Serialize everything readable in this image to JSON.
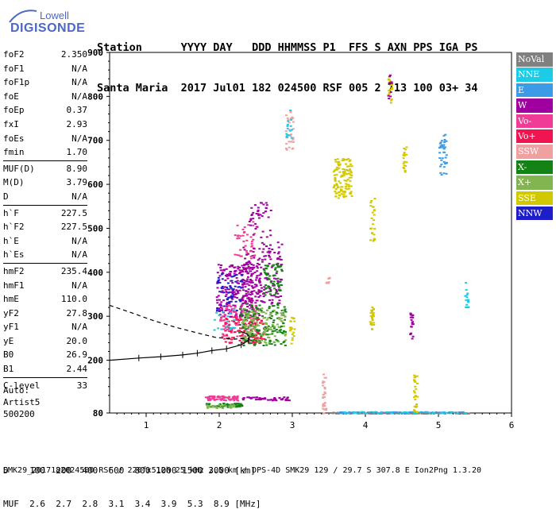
{
  "logo": {
    "top": "Lowell",
    "bottom": "DIGISONDE"
  },
  "header": {
    "row1": "Station      YYYY DAY   DDD HHMMSS P1  FFS S AXN PPS IGA PS",
    "row2": "Santa Maria  2017 Jul01 182 024500 RSF 005 2 713 100 03+ 34"
  },
  "params": [
    {
      "name": "foF2",
      "value": "2.350"
    },
    {
      "name": "foF1",
      "value": "N/A"
    },
    {
      "name": "foF1p",
      "value": "N/A"
    },
    {
      "name": "foE",
      "value": "N/A"
    },
    {
      "name": "foEp",
      "value": "0.37"
    },
    {
      "name": "fxI",
      "value": "2.93"
    },
    {
      "name": "foEs",
      "value": "N/A"
    },
    {
      "name": "fmin",
      "value": "1.70"
    },
    {
      "sep": true
    },
    {
      "name": "MUF(D)",
      "value": "8.90"
    },
    {
      "name": "M(D)",
      "value": "3.79"
    },
    {
      "name": "D",
      "value": "N/A"
    },
    {
      "sep": true
    },
    {
      "name": "h`F",
      "value": "227.5"
    },
    {
      "name": "h`F2",
      "value": "227.5"
    },
    {
      "name": "h`E",
      "value": "N/A"
    },
    {
      "name": "h`Es",
      "value": "N/A"
    },
    {
      "sep": true
    },
    {
      "name": "hmF2",
      "value": "235.4"
    },
    {
      "name": "hmF1",
      "value": "N/A"
    },
    {
      "name": "hmE",
      "value": "110.0"
    },
    {
      "name": "yF2",
      "value": "27.8"
    },
    {
      "name": "yF1",
      "value": "N/A"
    },
    {
      "name": "yE",
      "value": "20.0"
    },
    {
      "name": "B0",
      "value": "26.9"
    },
    {
      "name": "B1",
      "value": "2.44"
    },
    {
      "sep": true
    },
    {
      "name": "C-level",
      "value": "33"
    }
  ],
  "auto": {
    "line1": "Auto:",
    "line2": "Artist5",
    "line3": "500200"
  },
  "legend": [
    {
      "label": "NoVal",
      "color": "#808080"
    },
    {
      "label": "NNE",
      "color": "#1ecbe6"
    },
    {
      "label": "E",
      "color": "#3c9be6"
    },
    {
      "label": "W",
      "color": "#a000a0"
    },
    {
      "label": "Vo-",
      "color": "#f03c96"
    },
    {
      "label": "Vo+",
      "color": "#f01450"
    },
    {
      "label": "SSW",
      "color": "#f0a0a0"
    },
    {
      "label": "X-",
      "color": "#148214"
    },
    {
      "label": "X+",
      "color": "#82b450"
    },
    {
      "label": "SSE",
      "color": "#d2c800"
    },
    {
      "label": "NNW",
      "color": "#1e1ec8"
    }
  ],
  "chart_data": {
    "type": "scatter",
    "xlim": [
      0.5,
      6
    ],
    "ylim": [
      80,
      900
    ],
    "x_ticks": [
      1,
      2,
      3,
      4,
      5,
      6
    ],
    "y_ticks": [
      80,
      200,
      300,
      400,
      500,
      600,
      700,
      800,
      900
    ],
    "profile_points": [
      [
        0.5,
        200
      ],
      [
        0.9,
        205
      ],
      [
        1.2,
        208
      ],
      [
        1.5,
        212
      ],
      [
        1.7,
        216
      ],
      [
        1.9,
        222
      ],
      [
        2.1,
        226
      ],
      [
        2.3,
        235
      ],
      [
        2.4,
        245
      ]
    ],
    "dashed_trace": [
      [
        0.5,
        325
      ],
      [
        0.8,
        308
      ],
      [
        1.1,
        290
      ],
      [
        1.4,
        275
      ],
      [
        1.7,
        262
      ],
      [
        1.95,
        252
      ],
      [
        2.2,
        248
      ],
      [
        2.4,
        250
      ]
    ],
    "clusters": [
      {
        "series": "W",
        "x": [
          1.95,
          2.55
        ],
        "y": [
          300,
          420
        ],
        "n": 260
      },
      {
        "series": "W",
        "x": [
          2.3,
          2.85
        ],
        "y": [
          330,
          470
        ],
        "n": 160
      },
      {
        "series": "NNW",
        "x": [
          1.95,
          2.3
        ],
        "y": [
          310,
          400
        ],
        "n": 60
      },
      {
        "series": "Vo-",
        "x": [
          2.0,
          2.5
        ],
        "y": [
          250,
          330
        ],
        "n": 110
      },
      {
        "series": "Vo+",
        "x": [
          2.05,
          2.6
        ],
        "y": [
          240,
          300
        ],
        "n": 120
      },
      {
        "series": "X-",
        "x": [
          2.25,
          2.9
        ],
        "y": [
          235,
          330
        ],
        "n": 150
      },
      {
        "series": "X+",
        "x": [
          2.3,
          2.9
        ],
        "y": [
          240,
          320
        ],
        "n": 120
      },
      {
        "series": "Vo-",
        "x": [
          2.2,
          2.5
        ],
        "y": [
          430,
          520
        ],
        "n": 40
      },
      {
        "series": "W",
        "x": [
          2.4,
          2.7
        ],
        "y": [
          480,
          560
        ],
        "n": 40
      },
      {
        "series": "X-",
        "x": [
          2.6,
          2.85
        ],
        "y": [
          350,
          420
        ],
        "n": 60
      },
      {
        "series": "NNE",
        "x": [
          1.9,
          2.2
        ],
        "y": [
          270,
          320
        ],
        "n": 20
      },
      {
        "series": "Vo-",
        "x": [
          1.8,
          2.25
        ],
        "y": [
          110,
          120
        ],
        "n": 70
      },
      {
        "series": "X-",
        "x": [
          1.8,
          2.3
        ],
        "y": [
          95,
          104
        ],
        "n": 60
      },
      {
        "series": "X+",
        "x": [
          1.8,
          2.2
        ],
        "y": [
          92,
          100
        ],
        "n": 30
      },
      {
        "series": "W",
        "x": [
          2.3,
          2.95
        ],
        "y": [
          110,
          118
        ],
        "n": 50
      },
      {
        "series": "E",
        "x": [
          3.6,
          5.4
        ],
        "y": [
          80,
          84
        ],
        "n": 180
      },
      {
        "series": "NNE",
        "x": [
          3.6,
          5.4
        ],
        "y": [
          80,
          84
        ],
        "n": 80
      },
      {
        "series": "NoVal",
        "x": [
          3.4,
          5.4
        ],
        "y": [
          80,
          83
        ],
        "n": 40
      },
      {
        "series": "SSE",
        "x": [
          3.55,
          3.8
        ],
        "y": [
          570,
          660
        ],
        "n": 120
      },
      {
        "series": "SSE",
        "x": [
          4.05,
          4.12
        ],
        "y": [
          470,
          570
        ],
        "n": 25
      },
      {
        "series": "SSE",
        "x": [
          4.05,
          4.1
        ],
        "y": [
          270,
          330
        ],
        "n": 25
      },
      {
        "series": "SSE",
        "x": [
          2.95,
          3.02
        ],
        "y": [
          230,
          300
        ],
        "n": 20
      },
      {
        "series": "SSE",
        "x": [
          4.65,
          4.7
        ],
        "y": [
          80,
          170
        ],
        "n": 30
      },
      {
        "series": "SSE",
        "x": [
          4.5,
          4.55
        ],
        "y": [
          630,
          690
        ],
        "n": 20
      },
      {
        "series": "SSE",
        "x": [
          4.3,
          4.36
        ],
        "y": [
          780,
          850
        ],
        "n": 20
      },
      {
        "series": "SSW",
        "x": [
          3.4,
          3.45
        ],
        "y": [
          80,
          170
        ],
        "n": 30
      },
      {
        "series": "SSW",
        "x": [
          2.9,
          3.0
        ],
        "y": [
          680,
          770
        ],
        "n": 30
      },
      {
        "series": "SSW",
        "x": [
          3.45,
          3.5
        ],
        "y": [
          375,
          390
        ],
        "n": 8
      },
      {
        "series": "E",
        "x": [
          5.0,
          5.1
        ],
        "y": [
          620,
          720
        ],
        "n": 40
      },
      {
        "series": "W",
        "x": [
          4.6,
          4.64
        ],
        "y": [
          250,
          310
        ],
        "n": 20
      },
      {
        "series": "NNE",
        "x": [
          5.35,
          5.4
        ],
        "y": [
          320,
          380
        ],
        "n": 15
      },
      {
        "series": "NNE",
        "x": [
          2.9,
          2.98
        ],
        "y": [
          700,
          770
        ],
        "n": 15
      },
      {
        "series": "W",
        "x": [
          4.3,
          4.35
        ],
        "y": [
          790,
          850
        ],
        "n": 10
      }
    ]
  },
  "bottom": {
    "row1": "D    100  200  400  600  800 1000 1500 3000 [km]",
    "row2": "MUF  2.6  2.7  2.8  3.1  3.4  3.9  5.3  8.9 [MHz]"
  },
  "footer": "SMK29_2017182024500.RSF / 220fx512h 25 kHz 2.5 km / DPS-4D SMK29 129 / 29.7 S 307.8 E Ion2Png 1.3.20"
}
